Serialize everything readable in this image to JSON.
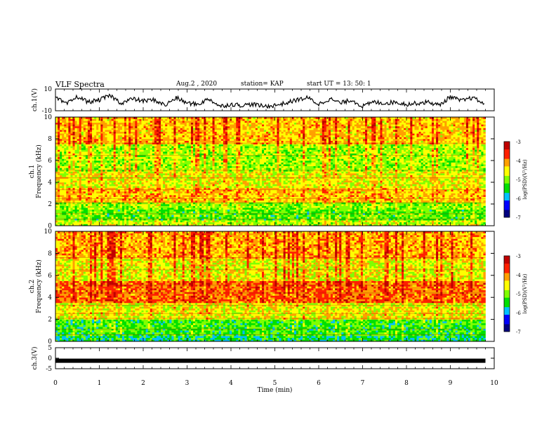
{
  "header": {
    "title": "VLF Spectra",
    "date": "Aug.2 , 2020",
    "station": "station= KAP",
    "start": "start UT = 13: 50: 1"
  },
  "chart_data": [
    {
      "type": "line",
      "panel": "channel-1-waveform",
      "ylabel": "ch.1(V)",
      "ylim": [
        -10,
        10
      ],
      "yticks": [
        "10",
        "-10"
      ],
      "xlim": [
        0,
        10
      ],
      "x": [
        0,
        0.25,
        0.5,
        0.75,
        1.0,
        1.25,
        1.5,
        1.75,
        2.0,
        2.25,
        2.5,
        2.75,
        3.0,
        3.25,
        3.5,
        3.75,
        4.0,
        4.25,
        4.5,
        4.75,
        5.0,
        5.25,
        5.5,
        5.75,
        6.0,
        6.25,
        6.5,
        6.75,
        7.0,
        7.25,
        7.5,
        7.75,
        8.0,
        8.25,
        8.5,
        8.75,
        9.0,
        9.25,
        9.5,
        9.8
      ],
      "values": [
        2,
        -4,
        3,
        -2,
        0,
        4,
        -3,
        1,
        -1,
        0,
        -5,
        2,
        -3,
        -4,
        1,
        -6,
        -4,
        -5,
        -4,
        -6,
        -5,
        -3,
        0,
        2,
        -4,
        1,
        -3,
        0,
        -6,
        -2,
        -3,
        -2,
        -4,
        -3,
        -2,
        -5,
        3,
        -1,
        2,
        -4
      ]
    },
    {
      "type": "heatmap",
      "panel": "channel-1-spectrogram",
      "ylabel": "ch.1 Frequency (kHz)",
      "ylim": [
        0,
        10
      ],
      "yticks": [
        "0",
        "2",
        "4",
        "6",
        "8",
        "10"
      ],
      "xlim": [
        0,
        10
      ],
      "colorbar": {
        "label": "log(PSD)(V²/Hz)",
        "range": [
          -7,
          -3
        ],
        "ticks": [
          "-3",
          "-4",
          "-5",
          "-6",
          "-7"
        ]
      },
      "bands": [
        {
          "f": [
            0,
            0.5
          ],
          "level": -4.8
        },
        {
          "f": [
            0.5,
            1.5
          ],
          "level": -5.2
        },
        {
          "f": [
            1.5,
            2.2
          ],
          "level": -5.0
        },
        {
          "f": [
            2.2,
            3.5
          ],
          "level": -4.3
        },
        {
          "f": [
            3.5,
            5.0
          ],
          "level": -4.6
        },
        {
          "f": [
            5.0,
            7.5
          ],
          "level": -4.9
        },
        {
          "f": [
            7.5,
            10
          ],
          "level": -4.3
        }
      ]
    },
    {
      "type": "heatmap",
      "panel": "channel-2-spectrogram",
      "ylabel": "ch.2 Frequency (kHz)",
      "ylim": [
        0,
        10
      ],
      "yticks": [
        "0",
        "2",
        "4",
        "6",
        "8",
        "10"
      ],
      "xlim": [
        0,
        10
      ],
      "colorbar": {
        "label": "log(PSD)(V²/Hz)",
        "range": [
          -7,
          -3
        ],
        "ticks": [
          "-3",
          "-4",
          "-5",
          "-6",
          "-7"
        ]
      },
      "bands": [
        {
          "f": [
            0,
            0.5
          ],
          "level": -5.6
        },
        {
          "f": [
            0.5,
            2.0
          ],
          "level": -5.3
        },
        {
          "f": [
            2.0,
            3.5
          ],
          "level": -4.6
        },
        {
          "f": [
            3.5,
            5.5
          ],
          "level": -3.9
        },
        {
          "f": [
            5.5,
            7.5
          ],
          "level": -4.6
        },
        {
          "f": [
            7.5,
            10
          ],
          "level": -4.2
        }
      ]
    },
    {
      "type": "line",
      "panel": "channel-3-waveform",
      "ylabel": "ch.3(V)",
      "ylim": [
        -5,
        5
      ],
      "yticks": [
        "5",
        "0",
        "-5"
      ],
      "xlim": [
        0,
        10
      ],
      "x": [
        0,
        9.8
      ],
      "values": [
        -1.2,
        -1.2
      ],
      "xlabel": "Time (min)",
      "xticks": [
        "0",
        "1",
        "2",
        "3",
        "4",
        "5",
        "6",
        "7",
        "8",
        "9",
        "10"
      ]
    }
  ],
  "colors": {
    "scale": [
      "#000080",
      "#0000ff",
      "#00c0ff",
      "#00e000",
      "#80ff00",
      "#ffff00",
      "#ffa000",
      "#ff2000",
      "#c00000",
      "#ffffff"
    ]
  }
}
